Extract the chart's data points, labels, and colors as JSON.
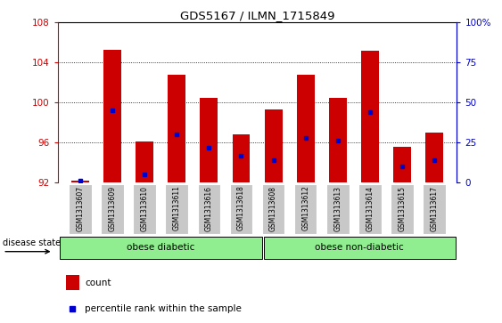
{
  "title": "GDS5167 / ILMN_1715849",
  "samples": [
    "GSM1313607",
    "GSM1313609",
    "GSM1313610",
    "GSM1313611",
    "GSM1313616",
    "GSM1313618",
    "GSM1313608",
    "GSM1313612",
    "GSM1313613",
    "GSM1313614",
    "GSM1313615",
    "GSM1313617"
  ],
  "count_values": [
    92.2,
    105.3,
    96.1,
    102.8,
    100.5,
    96.8,
    99.3,
    102.8,
    100.5,
    105.2,
    95.6,
    97.0
  ],
  "percentile_values": [
    1.0,
    45.0,
    5.0,
    30.0,
    22.0,
    17.0,
    14.0,
    28.0,
    26.0,
    44.0,
    10.0,
    14.0
  ],
  "base_value": 92.0,
  "ylim_left": [
    92,
    108
  ],
  "ylim_right": [
    0,
    100
  ],
  "yticks_left": [
    92,
    96,
    100,
    104,
    108
  ],
  "yticks_right": [
    0,
    25,
    50,
    75,
    100
  ],
  "group1_label": "obese diabetic",
  "group2_label": "obese non-diabetic",
  "group1_count": 6,
  "group2_count": 6,
  "disease_state_label": "disease state",
  "bar_color": "#cc0000",
  "marker_color": "#0000cc",
  "group_bg_color": "#90ee90",
  "tick_label_bg": "#c8c8c8",
  "left_axis_color": "#cc0000",
  "right_axis_color": "#0000cc",
  "legend_count_label": "count",
  "legend_pct_label": "percentile rank within the sample",
  "bar_width": 0.55
}
